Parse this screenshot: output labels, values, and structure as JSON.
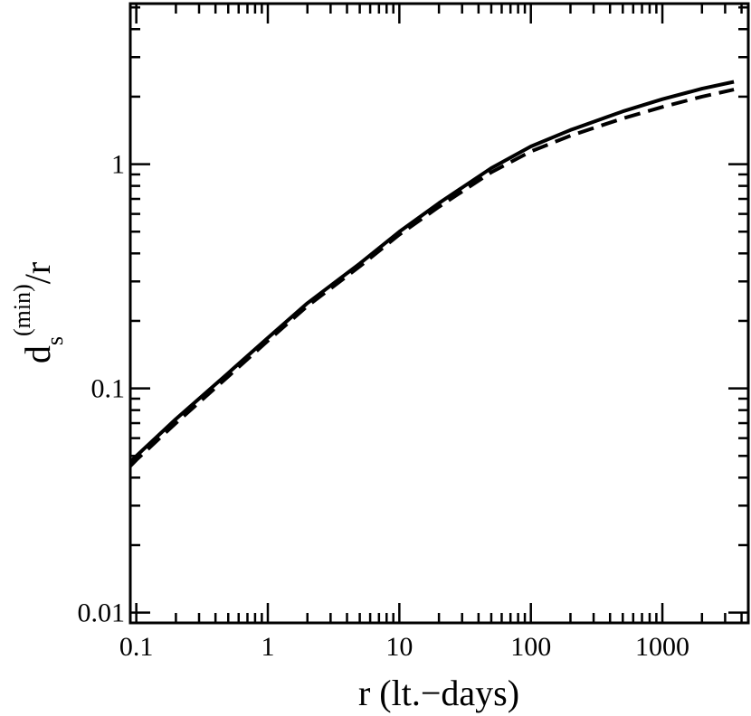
{
  "chart_data": {
    "type": "line",
    "title": "",
    "xlabel": "r (lt.−days)",
    "ylabel": {
      "base": "d",
      "subscript": "s",
      "superscript": "(min)",
      "suffix": "/r"
    },
    "xscale": "log",
    "yscale": "log",
    "xlim": [
      0.09,
      4500
    ],
    "ylim": [
      0.009,
      5.2
    ],
    "x_ticks": [
      {
        "value": 0.1,
        "label": "0.1"
      },
      {
        "value": 1,
        "label": "1"
      },
      {
        "value": 10,
        "label": "10"
      },
      {
        "value": 100,
        "label": "100"
      },
      {
        "value": 1000,
        "label": "1000"
      }
    ],
    "y_ticks": [
      {
        "value": 0.01,
        "label": "0.01"
      },
      {
        "value": 0.1,
        "label": "0.1"
      },
      {
        "value": 1,
        "label": "1"
      }
    ],
    "grid": false,
    "legend": "none",
    "series": [
      {
        "style": "solid",
        "color": "#000000",
        "x": [
          0.09,
          0.1,
          0.2,
          0.5,
          1,
          2,
          5,
          10,
          20,
          50,
          100,
          200,
          500,
          1000,
          2000,
          3500
        ],
        "y": [
          0.047,
          0.05,
          0.073,
          0.117,
          0.168,
          0.24,
          0.36,
          0.5,
          0.67,
          0.96,
          1.2,
          1.42,
          1.72,
          1.95,
          2.17,
          2.33
        ]
      },
      {
        "style": "dashed",
        "color": "#000000",
        "x": [
          0.09,
          0.1,
          0.2,
          0.5,
          1,
          2,
          5,
          10,
          20,
          50,
          100,
          200,
          500,
          1000,
          2000,
          3500
        ],
        "y": [
          0.045,
          0.048,
          0.07,
          0.113,
          0.163,
          0.233,
          0.35,
          0.485,
          0.645,
          0.92,
          1.14,
          1.34,
          1.6,
          1.8,
          2.0,
          2.15
        ]
      }
    ]
  }
}
